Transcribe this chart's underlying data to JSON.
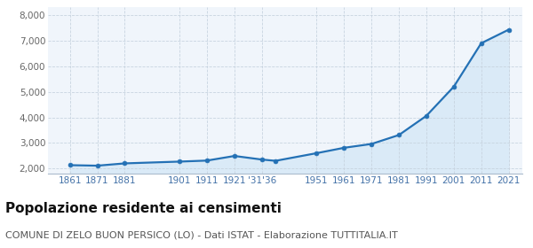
{
  "years": [
    1861,
    1871,
    1881,
    1901,
    1911,
    1921,
    1931,
    1936,
    1951,
    1961,
    1971,
    1981,
    1991,
    2001,
    2011,
    2021
  ],
  "population": [
    2130,
    2110,
    2200,
    2270,
    2310,
    2490,
    2350,
    2300,
    2600,
    2810,
    2960,
    3310,
    4060,
    5200,
    6900,
    7430
  ],
  "line_color": "#2471b5",
  "fill_color": "#daeaf7",
  "marker_color": "#2471b5",
  "background_color": "#f0f5fb",
  "grid_color": "#c8d4e0",
  "title": "Popolazione residente ai censimenti",
  "subtitle": "COMUNE DI ZELO BUON PERSICO (LO) - Dati ISTAT - Elaborazione TUTTITALIA.IT",
  "ylim": [
    1800,
    8300
  ],
  "yticks": [
    2000,
    3000,
    4000,
    5000,
    6000,
    7000,
    8000
  ],
  "title_fontsize": 11,
  "subtitle_fontsize": 8,
  "tick_fontsize": 7.5,
  "xtick_positions": [
    1861,
    1871,
    1881,
    1901,
    1911,
    1921,
    1931,
    1951,
    1961,
    1971,
    1981,
    1991,
    2001,
    2011,
    2021
  ],
  "xtick_labels": [
    "1861",
    "1871",
    "1881",
    "1901",
    "1911",
    "1921",
    "'31'36",
    "1951",
    "1961",
    "1971",
    "1981",
    "1991",
    "2001",
    "2011",
    "2021"
  ]
}
